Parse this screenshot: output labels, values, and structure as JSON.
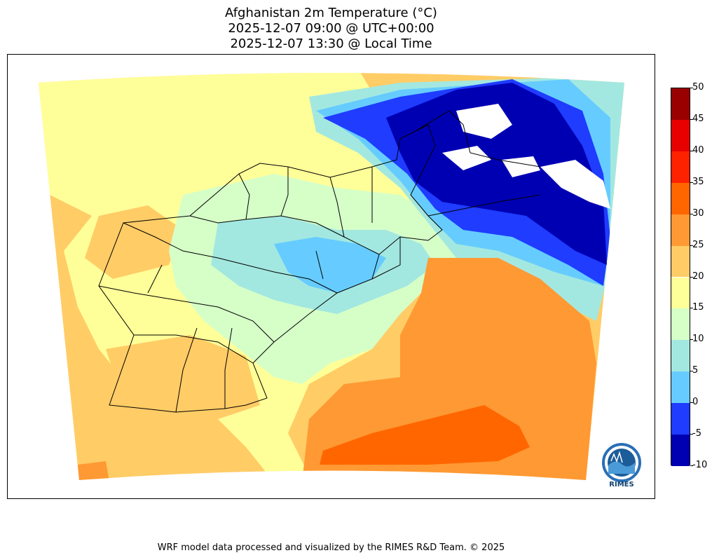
{
  "title": {
    "line1": "Afghanistan 2m Temperature (°C)",
    "line2": "2025-12-07 09:00 @ UTC+00:00",
    "line3": "2025-12-07 13:30 @ Local Time"
  },
  "colorbar": {
    "ticks": [
      "50",
      "45",
      "40",
      "35",
      "30",
      "25",
      "20",
      "15",
      "10",
      "5",
      "0",
      "-5",
      "-10"
    ],
    "bins": [
      {
        "from": -10,
        "to": -5,
        "color": "#0000b3"
      },
      {
        "from": -5,
        "to": 0,
        "color": "#1f3cff"
      },
      {
        "from": 0,
        "to": 5,
        "color": "#66ccff"
      },
      {
        "from": 5,
        "to": 10,
        "color": "#a3e8e0"
      },
      {
        "from": 10,
        "to": 15,
        "color": "#d6ffc8"
      },
      {
        "from": 15,
        "to": 20,
        "color": "#ffff99"
      },
      {
        "from": 20,
        "to": 25,
        "color": "#ffcc66"
      },
      {
        "from": 25,
        "to": 30,
        "color": "#ff9933"
      },
      {
        "from": 30,
        "to": 35,
        "color": "#ff6600"
      },
      {
        "from": 35,
        "to": 40,
        "color": "#ff2200"
      },
      {
        "from": 40,
        "to": 45,
        "color": "#e60000"
      },
      {
        "from": 45,
        "to": 50,
        "color": "#990000"
      }
    ]
  },
  "logo": {
    "label": "RIMES"
  },
  "footer": "WRF model data processed and visualized by the RIMES R&D Team. © 2025"
}
